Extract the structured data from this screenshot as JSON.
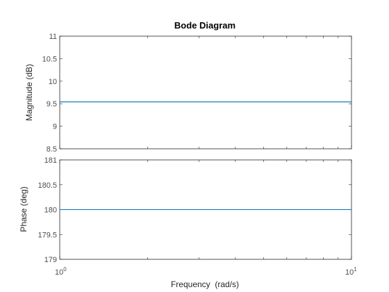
{
  "chart_data": {
    "type": "line",
    "title": "Bode Diagram",
    "xlabel": "Frequency  (rad/s)",
    "x_scale": "log",
    "xlim": [
      1,
      10
    ],
    "x_tick_labels": [
      {
        "base": "10",
        "exp": "0"
      },
      {
        "base": "10",
        "exp": "1"
      }
    ],
    "panels": [
      {
        "ylabel": "Magnitude (dB)",
        "ylim": [
          8.5,
          11
        ],
        "yticks": [
          "8.5",
          "9",
          "9.5",
          "10",
          "10.5",
          "11"
        ],
        "series": [
          {
            "x": [
              1,
              10
            ],
            "y": [
              9.54,
              9.54
            ],
            "color": "#0072BD"
          }
        ]
      },
      {
        "ylabel": "Phase (deg)",
        "ylim": [
          179,
          181
        ],
        "yticks": [
          "179",
          "179.5",
          "180",
          "180.5",
          "181"
        ],
        "series": [
          {
            "x": [
              1,
              10
            ],
            "y": [
              180,
              180
            ],
            "color": "#0072BD"
          }
        ]
      }
    ]
  }
}
